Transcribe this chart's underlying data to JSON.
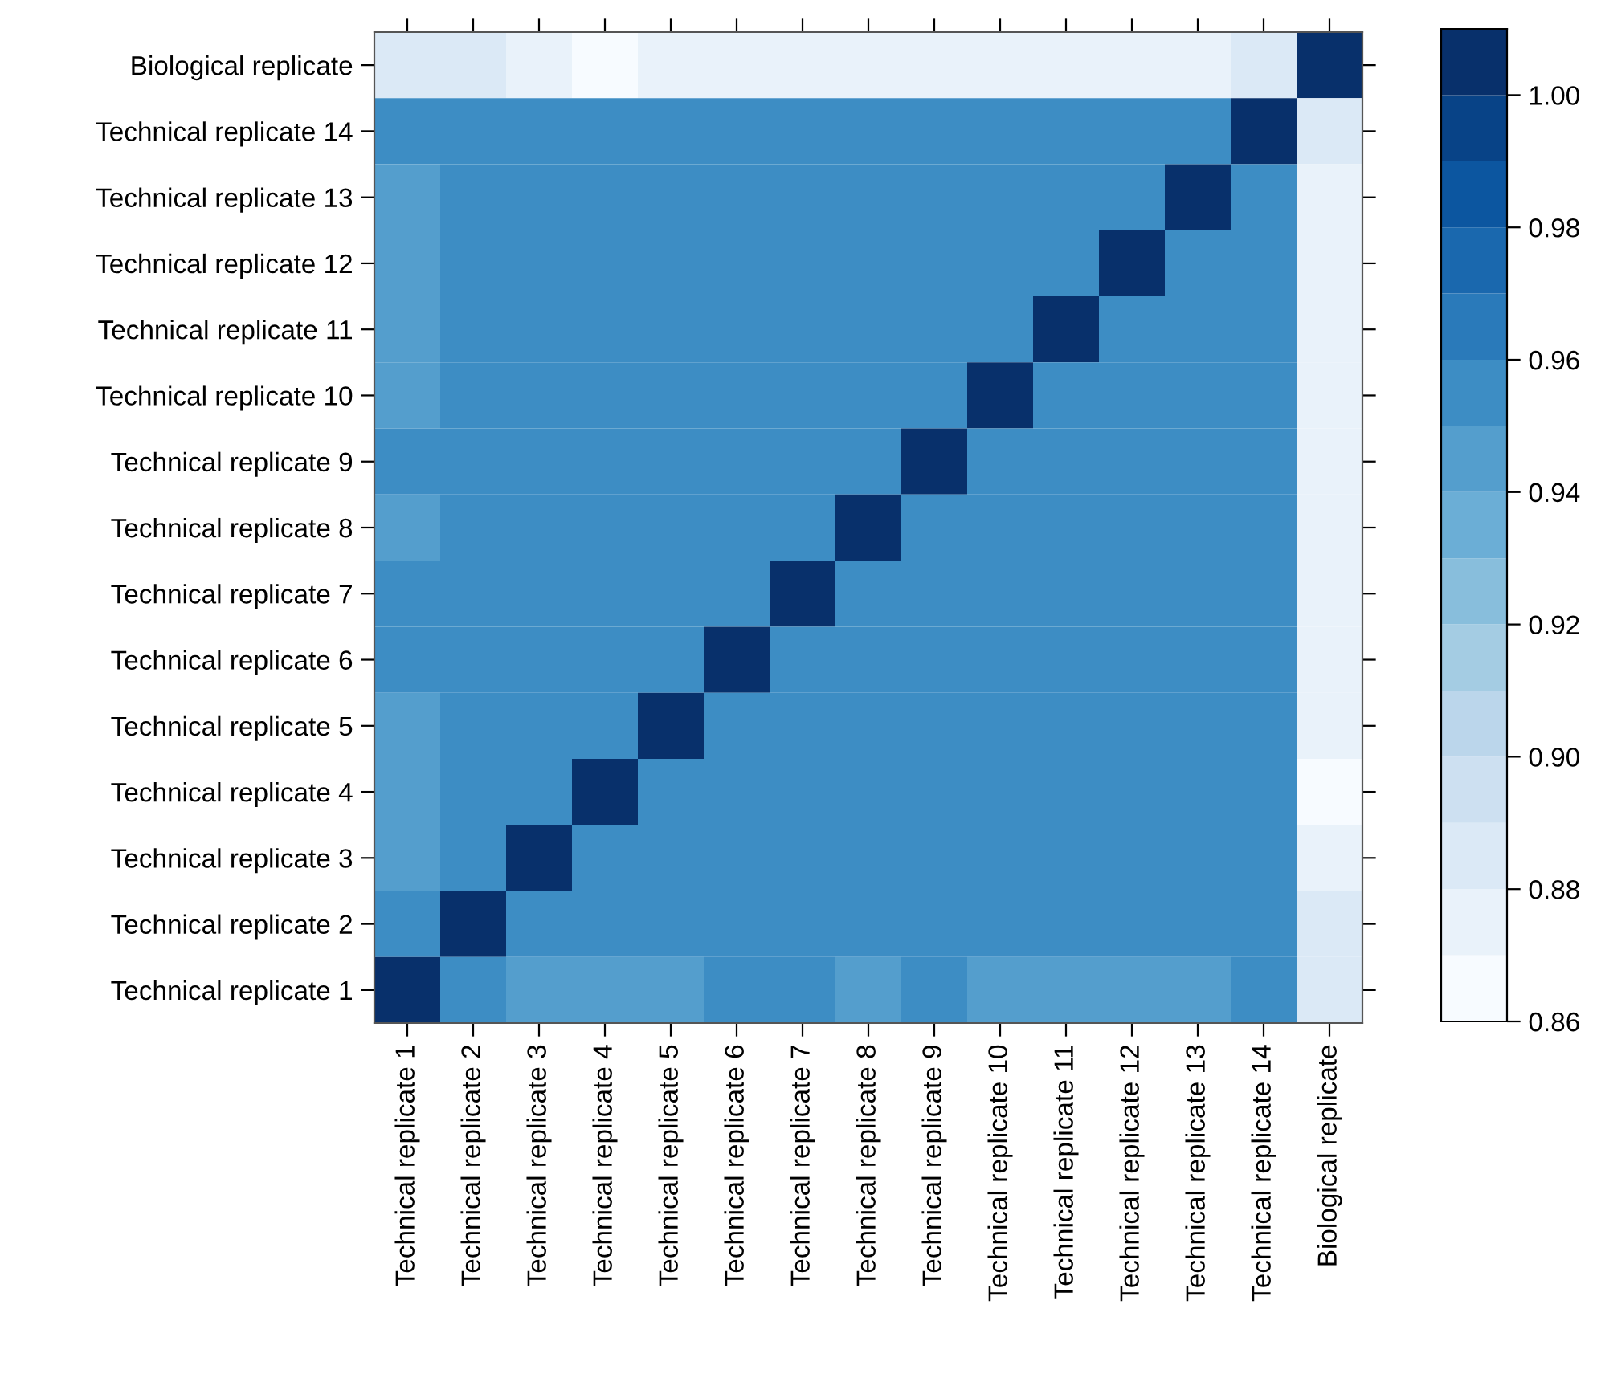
{
  "chart_data": {
    "type": "heatmap",
    "categories": [
      "Technical replicate 1",
      "Technical replicate 2",
      "Technical replicate 3",
      "Technical replicate 4",
      "Technical replicate 5",
      "Technical replicate 6",
      "Technical replicate 7",
      "Technical replicate 8",
      "Technical replicate 9",
      "Technical replicate 10",
      "Technical replicate 11",
      "Technical replicate 12",
      "Technical replicate 13",
      "Technical replicate 14",
      "Biological replicate"
    ],
    "y_categories": [
      "Biological replicate",
      "Technical replicate 14",
      "Technical replicate 13",
      "Technical replicate 12",
      "Technical replicate 11",
      "Technical replicate 10",
      "Technical replicate 9",
      "Technical replicate 8",
      "Technical replicate 7",
      "Technical replicate 6",
      "Technical replicate 5",
      "Technical replicate 4",
      "Technical replicate 3",
      "Technical replicate 2",
      "Technical replicate 1"
    ],
    "cells": [
      [
        0.885,
        0.885,
        0.875,
        0.865,
        0.875,
        0.875,
        0.875,
        0.875,
        0.875,
        0.875,
        0.875,
        0.875,
        0.875,
        0.885,
        1.0
      ],
      [
        0.955,
        0.955,
        0.955,
        0.955,
        0.955,
        0.955,
        0.955,
        0.955,
        0.955,
        0.955,
        0.955,
        0.955,
        0.955,
        1.0,
        0.885
      ],
      [
        0.945,
        0.955,
        0.955,
        0.955,
        0.955,
        0.955,
        0.955,
        0.955,
        0.955,
        0.955,
        0.955,
        0.955,
        1.0,
        0.955,
        0.875
      ],
      [
        0.945,
        0.955,
        0.955,
        0.955,
        0.955,
        0.955,
        0.955,
        0.955,
        0.955,
        0.955,
        0.955,
        1.0,
        0.955,
        0.955,
        0.875
      ],
      [
        0.945,
        0.955,
        0.955,
        0.955,
        0.955,
        0.955,
        0.955,
        0.955,
        0.955,
        0.955,
        1.0,
        0.955,
        0.955,
        0.955,
        0.875
      ],
      [
        0.945,
        0.955,
        0.955,
        0.955,
        0.955,
        0.955,
        0.955,
        0.955,
        0.955,
        1.0,
        0.955,
        0.955,
        0.955,
        0.955,
        0.875
      ],
      [
        0.955,
        0.955,
        0.955,
        0.955,
        0.955,
        0.955,
        0.955,
        0.955,
        1.0,
        0.955,
        0.955,
        0.955,
        0.955,
        0.955,
        0.875
      ],
      [
        0.945,
        0.955,
        0.955,
        0.955,
        0.955,
        0.955,
        0.955,
        1.0,
        0.955,
        0.955,
        0.955,
        0.955,
        0.955,
        0.955,
        0.875
      ],
      [
        0.955,
        0.955,
        0.955,
        0.955,
        0.955,
        0.955,
        1.0,
        0.955,
        0.955,
        0.955,
        0.955,
        0.955,
        0.955,
        0.955,
        0.875
      ],
      [
        0.955,
        0.955,
        0.955,
        0.955,
        0.955,
        1.0,
        0.955,
        0.955,
        0.955,
        0.955,
        0.955,
        0.955,
        0.955,
        0.955,
        0.875
      ],
      [
        0.945,
        0.955,
        0.955,
        0.955,
        1.0,
        0.955,
        0.955,
        0.955,
        0.955,
        0.955,
        0.955,
        0.955,
        0.955,
        0.955,
        0.875
      ],
      [
        0.945,
        0.955,
        0.955,
        1.0,
        0.955,
        0.955,
        0.955,
        0.955,
        0.955,
        0.955,
        0.955,
        0.955,
        0.955,
        0.955,
        0.865
      ],
      [
        0.945,
        0.955,
        1.0,
        0.955,
        0.955,
        0.955,
        0.955,
        0.955,
        0.955,
        0.955,
        0.955,
        0.955,
        0.955,
        0.955,
        0.875
      ],
      [
        0.955,
        1.0,
        0.955,
        0.955,
        0.955,
        0.955,
        0.955,
        0.955,
        0.955,
        0.955,
        0.955,
        0.955,
        0.955,
        0.955,
        0.885
      ],
      [
        1.0,
        0.955,
        0.945,
        0.945,
        0.945,
        0.955,
        0.955,
        0.945,
        0.955,
        0.945,
        0.945,
        0.945,
        0.945,
        0.955,
        0.885
      ]
    ],
    "clim": [
      0.86,
      1.01
    ],
    "cticks": [
      0.86,
      0.88,
      {
        "value": 0.9,
        "label": "0.90"
      },
      0.92,
      0.94,
      0.96,
      0.98,
      {
        "value": 1.0,
        "label": "1.00"
      }
    ]
  }
}
